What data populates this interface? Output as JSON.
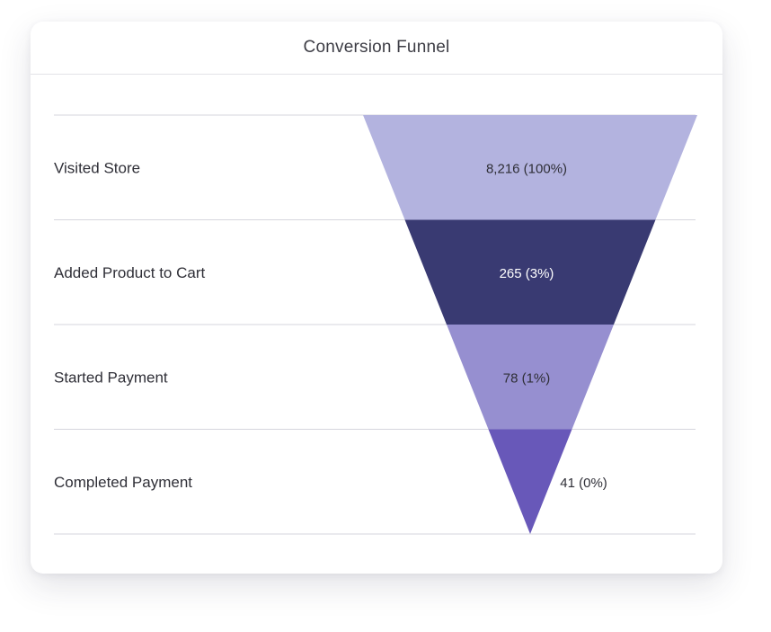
{
  "chart_data": {
    "type": "funnel",
    "title": "Conversion Funnel",
    "stages": [
      {
        "label": "Visited Store",
        "value": 8216,
        "value_label": "8,216 (100%)",
        "color": "#b3b3df",
        "text_color": "#2f2f37"
      },
      {
        "label": "Added Product to Cart",
        "value": 265,
        "value_label": "265 (3%)",
        "color": "#393a72",
        "text_color": "#ffffff"
      },
      {
        "label": "Started Payment",
        "value": 78,
        "value_label": "78 (1%)",
        "color": "#968fd0",
        "text_color": "#2f2f37"
      },
      {
        "label": "Completed Payment",
        "value": 41,
        "value_label": "41 (0%)",
        "color": "#6858b9",
        "text_color": "#2f2f37"
      }
    ]
  }
}
